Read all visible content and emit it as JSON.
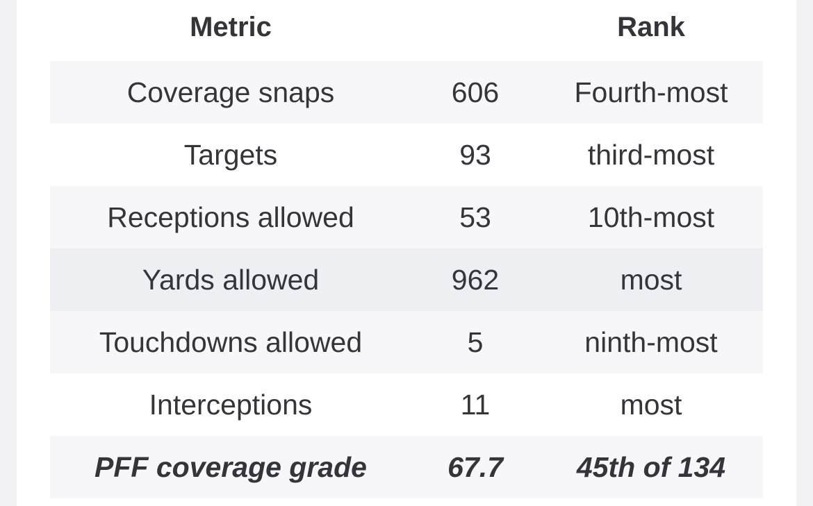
{
  "table": {
    "headers": [
      "Metric",
      "",
      "Rank"
    ],
    "rows": [
      {
        "metric": "Coverage snaps",
        "value": "606",
        "rank": "Fourth-most"
      },
      {
        "metric": "Targets",
        "value": "93",
        "rank": "third-most"
      },
      {
        "metric": "Receptions allowed",
        "value": "53",
        "rank": "10th-most"
      },
      {
        "metric": "Yards allowed",
        "value": "962",
        "rank": "most"
      },
      {
        "metric": "Touchdowns allowed",
        "value": "5",
        "rank": "ninth-most"
      },
      {
        "metric": "Interceptions",
        "value": "11",
        "rank": "most"
      },
      {
        "metric": "PFF coverage grade",
        "value": "67.7",
        "rank": "45th of 134"
      }
    ]
  }
}
